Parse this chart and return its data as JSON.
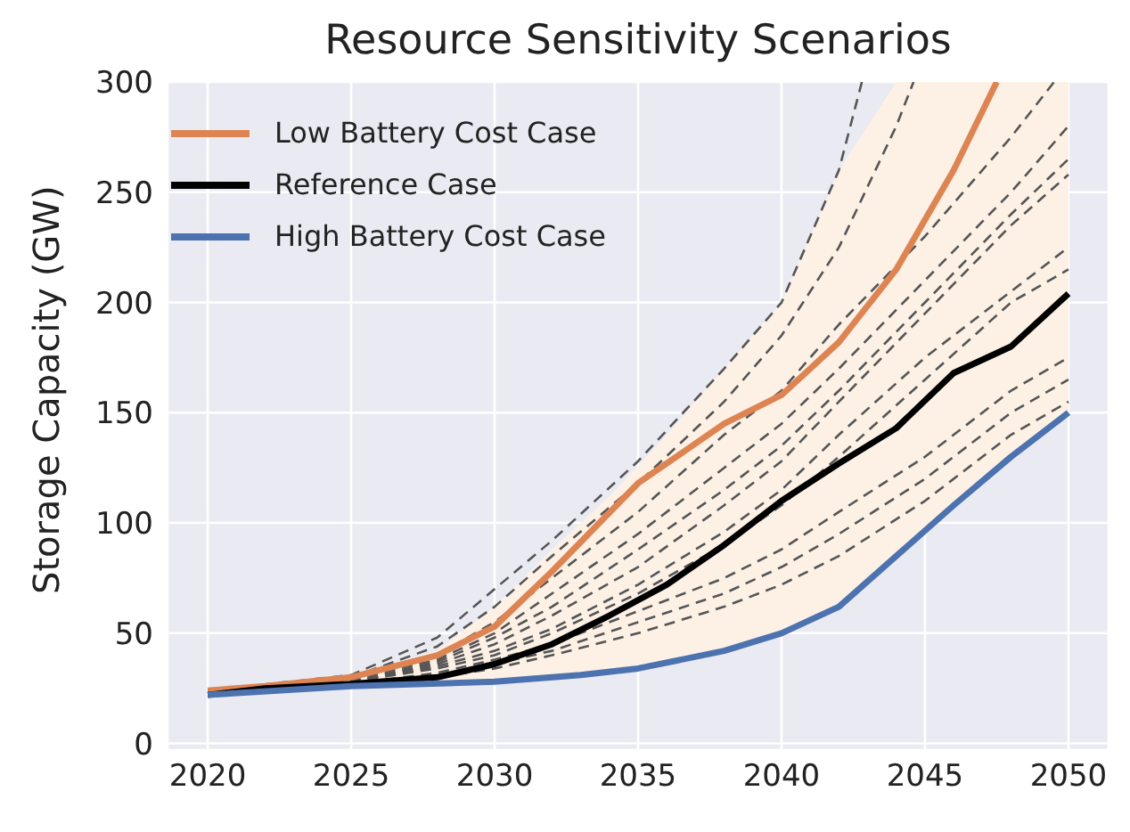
{
  "chart_data": {
    "type": "line",
    "title": "Resource Sensitivity Scenarios",
    "ylabel": "Storage Capacity (GW)",
    "xlim": [
      2018.6,
      2051.4
    ],
    "ylim": [
      -3,
      300
    ],
    "xticks": [
      2020,
      2025,
      2030,
      2035,
      2040,
      2045,
      2050
    ],
    "yticks": [
      0,
      50,
      100,
      150,
      200,
      250,
      300
    ],
    "grid": true,
    "legend": "top left",
    "line_style": "solid",
    "series": [
      {
        "name": "Low Battery Cost Case",
        "color": "#dd8452",
        "x": [
          2020,
          2022,
          2025,
          2028,
          2030,
          2032,
          2035,
          2038,
          2040,
          2042,
          2044,
          2046,
          2047.5
        ],
        "values": [
          24,
          26,
          30,
          40,
          53,
          78,
          118,
          145,
          158,
          182,
          215,
          260,
          300
        ]
      },
      {
        "name": "Reference Case",
        "color": "#000000",
        "x": [
          2020,
          2022,
          2025,
          2028,
          2030,
          2032,
          2034,
          2036,
          2038,
          2040,
          2042,
          2044,
          2046,
          2048,
          2050
        ],
        "values": [
          22,
          25,
          27,
          30,
          36,
          45,
          58,
          72,
          90,
          110,
          127,
          143,
          168,
          180,
          204
        ],
        "lower": [
          22,
          25,
          26,
          27,
          28,
          30,
          33,
          37,
          42,
          50,
          62,
          85,
          108,
          130,
          150
        ],
        "upper": [
          24,
          27,
          31,
          42,
          62,
          88,
          112,
          140,
          170,
          200,
          260,
          300,
          300,
          300,
          300
        ]
      },
      {
        "name": "High Battery Cost Case",
        "color": "#4c72b0",
        "x": [
          2020,
          2025,
          2030,
          2033,
          2035,
          2038,
          2040,
          2042,
          2044,
          2046,
          2048,
          2050
        ],
        "values": [
          22,
          26,
          28,
          31,
          34,
          42,
          50,
          62,
          85,
          108,
          130,
          150
        ]
      },
      {
        "type": "line",
        "color": "#555555",
        "line_style": "dashed",
        "x": [
          2020,
          2025,
          2028,
          2030,
          2032,
          2035,
          2038,
          2040,
          2042,
          2042.8
        ],
        "values": [
          24,
          31,
          48,
          70,
          92,
          128,
          170,
          200,
          260,
          300
        ]
      },
      {
        "color": "#555555",
        "line_style": "dashed",
        "x": [
          2020,
          2025,
          2028,
          2030,
          2032,
          2035,
          2038,
          2040,
          2042,
          2044,
          2044.6
        ],
        "values": [
          24,
          30,
          44,
          62,
          85,
          118,
          155,
          185,
          225,
          280,
          300
        ]
      },
      {
        "color": "#555555",
        "line_style": "dashed",
        "x": [
          2020,
          2025,
          2028,
          2030,
          2032,
          2035,
          2038,
          2040,
          2042,
          2045,
          2048,
          2049.5
        ],
        "values": [
          24,
          29,
          40,
          55,
          75,
          105,
          140,
          160,
          190,
          230,
          275,
          300
        ]
      },
      {
        "color": "#555555",
        "line_style": "dashed",
        "x": [
          2020,
          2025,
          2028,
          2030,
          2032,
          2035,
          2038,
          2040,
          2042,
          2045,
          2048,
          2050
        ],
        "values": [
          24,
          29,
          38,
          50,
          68,
          95,
          125,
          145,
          170,
          210,
          250,
          280
        ]
      },
      {
        "color": "#555555",
        "line_style": "dashed",
        "x": [
          2020,
          2025,
          2028,
          2030,
          2032,
          2035,
          2038,
          2040,
          2042,
          2045,
          2048,
          2050
        ],
        "values": [
          24,
          28,
          37,
          48,
          62,
          88,
          115,
          135,
          160,
          200,
          240,
          265
        ]
      },
      {
        "color": "#555555",
        "line_style": "dashed",
        "x": [
          2020,
          2025,
          2028,
          2030,
          2032,
          2035,
          2038,
          2040,
          2042,
          2045,
          2048,
          2050
        ],
        "values": [
          24,
          28,
          36,
          45,
          58,
          80,
          108,
          128,
          155,
          195,
          235,
          258
        ]
      },
      {
        "color": "#555555",
        "line_style": "dashed",
        "x": [
          2020,
          2025,
          2028,
          2030,
          2032,
          2035,
          2038,
          2040,
          2042,
          2045,
          2048,
          2050
        ],
        "values": [
          24,
          28,
          35,
          42,
          52,
          72,
          96,
          115,
          140,
          175,
          205,
          225
        ]
      },
      {
        "color": "#555555",
        "line_style": "dashed",
        "x": [
          2020,
          2025,
          2028,
          2030,
          2032,
          2035,
          2038,
          2040,
          2042,
          2045,
          2048,
          2050
        ],
        "values": [
          24,
          28,
          34,
          40,
          50,
          68,
          90,
          108,
          130,
          165,
          200,
          215
        ]
      },
      {
        "color": "#555555",
        "line_style": "dashed",
        "x": [
          2020,
          2025,
          2028,
          2030,
          2032,
          2035,
          2038,
          2040,
          2042,
          2045,
          2048,
          2050
        ],
        "values": [
          24,
          27,
          32,
          38,
          45,
          60,
          75,
          88,
          105,
          130,
          160,
          175
        ]
      },
      {
        "color": "#555555",
        "line_style": "dashed",
        "x": [
          2020,
          2025,
          2028,
          2030,
          2032,
          2035,
          2038,
          2040,
          2042,
          2045,
          2048,
          2050
        ],
        "values": [
          24,
          27,
          31,
          36,
          42,
          55,
          68,
          80,
          95,
          120,
          150,
          165
        ]
      },
      {
        "color": "#555555",
        "line_style": "dashed",
        "x": [
          2020,
          2025,
          2028,
          2030,
          2032,
          2035,
          2038,
          2040,
          2042,
          2045,
          2048,
          2050
        ],
        "values": [
          24,
          27,
          30,
          34,
          40,
          50,
          62,
          72,
          85,
          110,
          140,
          155
        ]
      }
    ]
  }
}
